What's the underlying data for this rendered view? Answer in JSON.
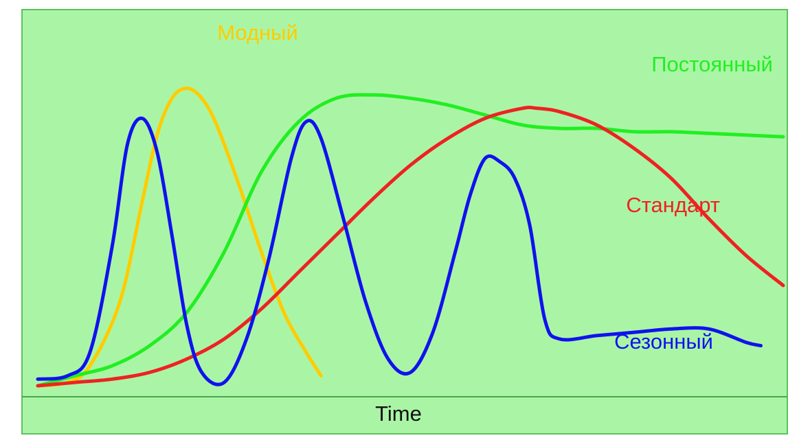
{
  "chart_data": {
    "type": "line",
    "xlabel": "Time",
    "ylabel": "",
    "title": "",
    "xlim": [
      0,
      100
    ],
    "ylim": [
      0,
      100
    ],
    "grid": false,
    "legend": "inline labels",
    "background_color": "#aaf5a5",
    "border_color": "#5fbf5f",
    "series": [
      {
        "name": "Модный",
        "color": "#ffcc00",
        "points": [
          [
            0,
            0
          ],
          [
            4,
            1
          ],
          [
            7,
            6
          ],
          [
            11,
            25
          ],
          [
            14,
            55
          ],
          [
            16,
            75
          ],
          [
            18,
            86
          ],
          [
            20,
            89
          ],
          [
            22,
            86
          ],
          [
            24,
            78
          ],
          [
            27,
            60
          ],
          [
            30,
            40
          ],
          [
            33,
            22
          ],
          [
            36,
            10
          ],
          [
            38,
            3
          ]
        ]
      },
      {
        "name": "Постоянный",
        "color": "#22ee22",
        "points": [
          [
            0,
            0
          ],
          [
            5,
            3
          ],
          [
            10,
            6
          ],
          [
            15,
            12
          ],
          [
            20,
            22
          ],
          [
            25,
            40
          ],
          [
            30,
            64
          ],
          [
            35,
            79
          ],
          [
            40,
            86
          ],
          [
            45,
            87
          ],
          [
            50,
            86
          ],
          [
            55,
            84
          ],
          [
            60,
            81
          ],
          [
            65,
            78
          ],
          [
            70,
            77
          ],
          [
            75,
            77
          ],
          [
            80,
            76
          ],
          [
            85,
            76
          ],
          [
            90,
            75.5
          ],
          [
            95,
            75
          ],
          [
            100,
            74.5
          ]
        ]
      },
      {
        "name": "Стандарт",
        "color": "#ee2222",
        "points": [
          [
            0,
            0
          ],
          [
            5,
            1
          ],
          [
            10,
            2
          ],
          [
            15,
            4
          ],
          [
            20,
            8
          ],
          [
            25,
            14
          ],
          [
            30,
            23
          ],
          [
            35,
            34
          ],
          [
            40,
            45
          ],
          [
            45,
            56
          ],
          [
            50,
            66
          ],
          [
            55,
            74
          ],
          [
            60,
            80
          ],
          [
            65,
            83
          ],
          [
            67,
            83
          ],
          [
            70,
            82
          ],
          [
            75,
            78
          ],
          [
            80,
            71
          ],
          [
            85,
            62
          ],
          [
            90,
            50
          ],
          [
            95,
            39
          ],
          [
            100,
            30
          ]
        ]
      },
      {
        "name": "Сезонный",
        "color": "#1111ee",
        "points": [
          [
            0,
            2
          ],
          [
            4,
            3
          ],
          [
            7,
            10
          ],
          [
            10,
            42
          ],
          [
            12,
            72
          ],
          [
            14,
            80
          ],
          [
            16,
            70
          ],
          [
            18,
            45
          ],
          [
            20,
            18
          ],
          [
            22,
            4
          ],
          [
            25,
            1
          ],
          [
            28,
            14
          ],
          [
            31,
            38
          ],
          [
            34,
            68
          ],
          [
            36,
            79
          ],
          [
            38,
            74
          ],
          [
            41,
            50
          ],
          [
            44,
            25
          ],
          [
            47,
            8
          ],
          [
            50,
            4
          ],
          [
            53,
            16
          ],
          [
            56,
            40
          ],
          [
            58,
            57
          ],
          [
            60,
            68
          ],
          [
            62,
            67
          ],
          [
            64,
            62
          ],
          [
            66,
            48
          ],
          [
            68,
            20
          ],
          [
            70,
            14
          ],
          [
            75,
            15
          ],
          [
            80,
            16
          ],
          [
            85,
            17
          ],
          [
            90,
            17
          ],
          [
            95,
            13
          ],
          [
            97,
            12
          ]
        ]
      }
    ]
  }
}
